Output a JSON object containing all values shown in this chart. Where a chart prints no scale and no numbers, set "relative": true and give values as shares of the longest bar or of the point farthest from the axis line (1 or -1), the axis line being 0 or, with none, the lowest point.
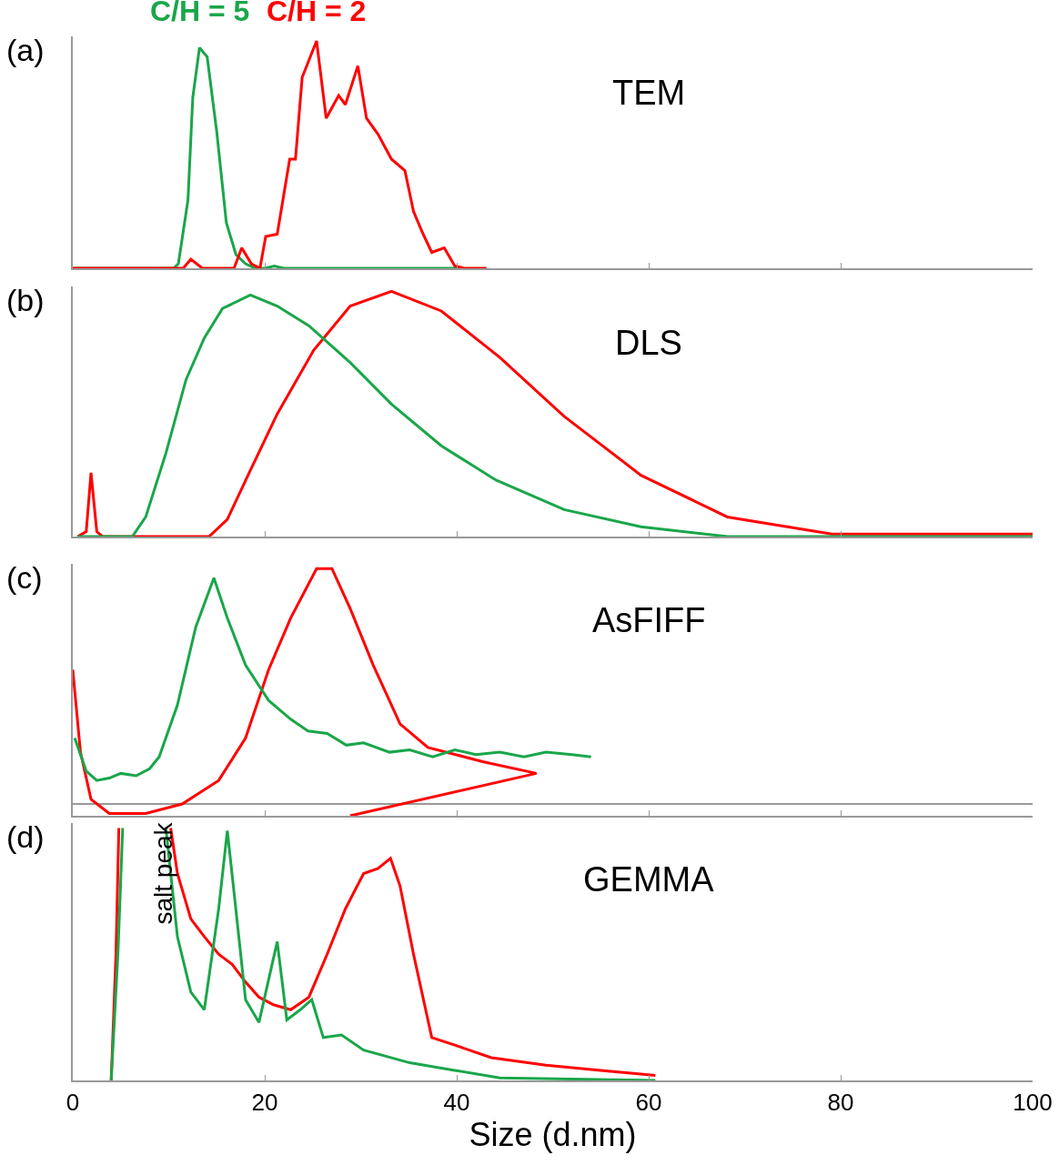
{
  "chart_data": [
    {
      "type": "line",
      "title": "TEM",
      "relative": true,
      "xlim": [
        0,
        100
      ],
      "xticks": [
        {
          "value": 0,
          "label": null
        },
        {
          "value": 20,
          "label": null
        },
        {
          "value": 40,
          "label": null
        },
        {
          "value": 60,
          "label": null
        },
        {
          "value": 80,
          "label": null
        },
        {
          "value": 100,
          "label": null
        }
      ],
      "tick_labels": false,
      "annotations": [
        "(a)"
      ],
      "series": [
        {
          "name": "C/H = 5",
          "color": "#1aa64a",
          "x": [
            0,
            10.5,
            11,
            12,
            12.5,
            13.2,
            14,
            15,
            16,
            17,
            18,
            19,
            20,
            21,
            22,
            40
          ],
          "values": [
            0,
            0,
            0.02,
            0.3,
            0.75,
            0.97,
            0.93,
            0.6,
            0.2,
            0.06,
            0.02,
            0,
            0,
            0.01,
            0,
            0
          ]
        },
        {
          "name": "C/H = 2",
          "color": "#ff0000",
          "x": [
            0,
            11.5,
            12.3,
            13.5,
            16.8,
            17.6,
            18.6,
            19.5,
            20.1,
            21.3,
            22.6,
            23.2,
            23.9,
            25.4,
            26.4,
            27.7,
            28.4,
            29.7,
            30.6,
            31.8,
            33.2,
            34.6,
            35.5,
            36.5,
            37.4,
            38.7,
            39.8,
            40.8,
            43.1
          ],
          "values": [
            0,
            0,
            0.04,
            0,
            0,
            0.09,
            0.02,
            0,
            0.14,
            0.15,
            0.48,
            0.48,
            0.84,
            1.0,
            0.66,
            0.76,
            0.72,
            0.89,
            0.66,
            0.59,
            0.48,
            0.43,
            0.25,
            0.15,
            0.07,
            0.09,
            0.01,
            0,
            0
          ]
        }
      ]
    },
    {
      "type": "line",
      "title": "DLS",
      "relative": true,
      "xlim": [
        0,
        100
      ],
      "xticks": [
        {
          "value": 0,
          "label": null
        },
        {
          "value": 20,
          "label": null
        },
        {
          "value": 40,
          "label": null
        },
        {
          "value": 60,
          "label": null
        },
        {
          "value": 80,
          "label": null
        },
        {
          "value": 100,
          "label": null
        }
      ],
      "tick_labels": false,
      "annotations": [
        "(b)"
      ],
      "series": [
        {
          "color": "#ff0000",
          "x": [
            0.5,
            1.4,
            1.9,
            2.5,
            3.1,
            14.2,
            16.1,
            18.5,
            21.3,
            25.1,
            28.9,
            33.2,
            38.4,
            44.5,
            51.2,
            59.2,
            68.2,
            79.1,
            100
          ],
          "values": [
            0,
            0.02,
            0.26,
            0.02,
            0,
            0,
            0.07,
            0.27,
            0.5,
            0.76,
            0.94,
            1.0,
            0.92,
            0.73,
            0.49,
            0.25,
            0.08,
            0.01,
            0.01
          ]
        },
        {
          "color": "#1aa64a",
          "x": [
            0.5,
            6.2,
            7.6,
            9.7,
            11.8,
            13.7,
            15.6,
            18.5,
            21.3,
            24.6,
            28.9,
            33.2,
            38.4,
            44.1,
            51.2,
            59.2,
            68.2,
            100
          ],
          "values": [
            0,
            0,
            0.08,
            0.34,
            0.64,
            0.81,
            0.93,
            0.985,
            0.94,
            0.86,
            0.71,
            0.54,
            0.37,
            0.23,
            0.11,
            0.04,
            0,
            0
          ]
        }
      ]
    },
    {
      "type": "line",
      "title": "AsFIFF",
      "relative": true,
      "xlim": [
        0,
        100
      ],
      "xticks": [
        {
          "value": 0,
          "label": null
        },
        {
          "value": 20,
          "label": null
        },
        {
          "value": 40,
          "label": null
        },
        {
          "value": 60,
          "label": null
        },
        {
          "value": 80,
          "label": null
        },
        {
          "value": 100,
          "label": null
        }
      ],
      "tick_labels": false,
      "annotations": [
        "(c)"
      ],
      "series": [
        {
          "color": "#ff0000",
          "x": [
            0,
            0.8,
            1.9,
            3.8,
            7.6,
            11.4,
            15.2,
            18,
            20.4,
            22.7,
            25.4,
            27,
            28.9,
            31.3,
            34.1,
            37,
            42.7,
            48.3,
            28.9
          ],
          "values": [
            0.57,
            0.22,
            0.02,
            -0.04,
            -0.04,
            0,
            0.1,
            0.28,
            0.57,
            0.79,
            1.0,
            1.0,
            0.83,
            0.59,
            0.34,
            0.24,
            0.18,
            0.13,
            -0.05
          ]
        },
        {
          "color": "#1aa64a",
          "x": [
            0.2,
            1.4,
            2.5,
            3.8,
            5,
            6.6,
            8,
            9,
            10.9,
            12.8,
            14.7,
            16.1,
            18,
            20.4,
            22.7,
            24.5,
            26.5,
            28.5,
            30.3,
            33,
            35.1,
            37.5,
            39.8,
            42,
            44.5,
            47,
            49.3,
            52,
            54
          ],
          "values": [
            0.28,
            0.14,
            0.1,
            0.11,
            0.13,
            0.12,
            0.15,
            0.2,
            0.42,
            0.75,
            0.96,
            0.79,
            0.59,
            0.44,
            0.36,
            0.31,
            0.3,
            0.25,
            0.26,
            0.22,
            0.23,
            0.2,
            0.23,
            0.21,
            0.22,
            0.2,
            0.22,
            0.21,
            0.2
          ]
        }
      ]
    },
    {
      "type": "line",
      "title": "GEMMA",
      "xlabel": "Size (d.nm)",
      "relative": true,
      "xlim": [
        0,
        100
      ],
      "xticks": [
        0,
        20,
        40,
        60,
        80,
        100
      ],
      "tick_labels": "x",
      "annotations": [
        "(d)",
        "salt peak"
      ],
      "series": [
        {
          "color": "#ff0000",
          "x": [
            4,
            4.5,
            4.8,
            7,
            10.2,
            10.9,
            12.3,
            13.7,
            15.2,
            16.6,
            18,
            19.4,
            20.9,
            22.7,
            24.6,
            26.5,
            28.4,
            30.3,
            31.8,
            33.1,
            34.1,
            35.5,
            37.4,
            39.8,
            43.6,
            49.3,
            55,
            60.7
          ],
          "values": [
            0,
            0.5,
            1.0,
            null,
            1.0,
            0.82,
            0.64,
            0.57,
            0.5,
            0.46,
            0.39,
            0.33,
            0.3,
            0.28,
            0.33,
            0.5,
            0.68,
            0.82,
            0.84,
            0.88,
            0.77,
            0.5,
            0.17,
            0.14,
            0.09,
            0.06,
            0.04,
            0.02
          ]
        },
        {
          "color": "#1aa64a",
          "x": [
            4,
            4.7,
            5.2,
            7,
            9.7,
            10.9,
            12.3,
            13.7,
            15.2,
            16.1,
            16.9,
            18,
            19.4,
            21.3,
            22.3,
            23.7,
            24.9,
            26.1,
            28,
            30.3,
            35.1,
            39.8,
            44.5,
            60.7
          ],
          "values": [
            0,
            0.5,
            1.0,
            null,
            1.0,
            0.57,
            0.35,
            0.28,
            0.68,
            0.99,
            0.71,
            0.32,
            0.23,
            0.55,
            0.24,
            0.28,
            0.32,
            0.17,
            0.18,
            0.12,
            0.07,
            0.04,
            0.01,
            0
          ]
        }
      ]
    }
  ]
}
